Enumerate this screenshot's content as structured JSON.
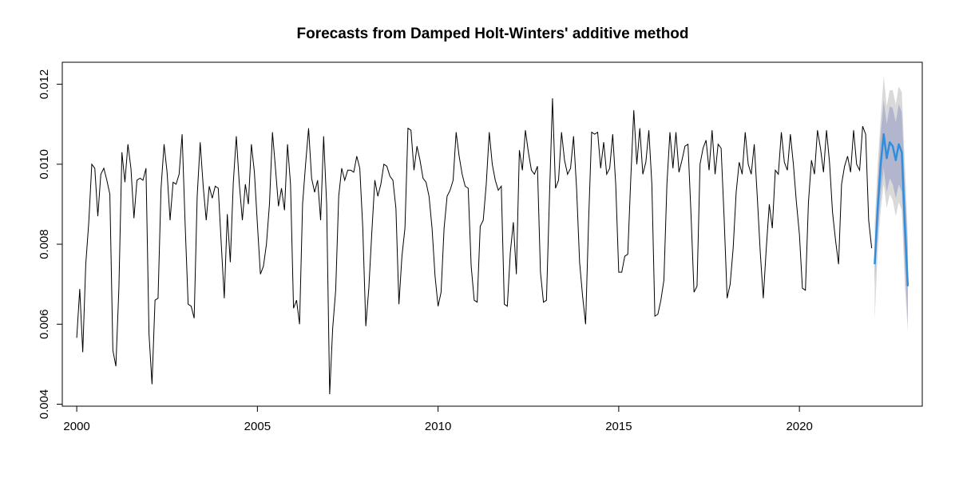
{
  "chart_data": {
    "type": "line",
    "title": "Forecasts from Damped Holt-Winters' additive method",
    "xlabel": "",
    "ylabel": "",
    "xlim": [
      1999.6,
      2023.4
    ],
    "ylim": [
      0.00395,
      0.01255
    ],
    "x_ticks": [
      2000,
      2005,
      2010,
      2015,
      2020
    ],
    "x_tick_labels": [
      "2000",
      "2005",
      "2010",
      "2015",
      "2020"
    ],
    "y_ticks": [
      0.004,
      0.006,
      0.008,
      0.01,
      0.012
    ],
    "y_tick_labels": [
      "0.004",
      "0.006",
      "0.008",
      "0.010",
      "0.012"
    ],
    "grid": false,
    "legend": "none",
    "series": [
      {
        "role": "observed",
        "start": 2000.0,
        "frequency": 12,
        "color": "#000000",
        "values": [
          0.00566,
          0.00688,
          0.0053,
          0.0075,
          0.00855,
          0.01,
          0.0099,
          0.0087,
          0.00975,
          0.0099,
          0.0096,
          0.00925,
          0.00535,
          0.00495,
          0.0069,
          0.0103,
          0.00955,
          0.0105,
          0.0099,
          0.00865,
          0.0096,
          0.00965,
          0.0096,
          0.0099,
          0.00575,
          0.0045,
          0.0066,
          0.00665,
          0.0094,
          0.0105,
          0.0098,
          0.0086,
          0.00955,
          0.0095,
          0.00975,
          0.01075,
          0.0085,
          0.0065,
          0.00645,
          0.00615,
          0.0092,
          0.01055,
          0.00945,
          0.0086,
          0.00945,
          0.00915,
          0.00945,
          0.0094,
          0.008,
          0.00665,
          0.00875,
          0.00755,
          0.00955,
          0.0107,
          0.0095,
          0.0086,
          0.0095,
          0.009,
          0.0105,
          0.0098,
          0.0085,
          0.00725,
          0.00745,
          0.008,
          0.009,
          0.0108,
          0.0099,
          0.00895,
          0.0094,
          0.00885,
          0.0105,
          0.0095,
          0.0064,
          0.0066,
          0.006,
          0.009,
          0.01,
          0.0109,
          0.00965,
          0.0093,
          0.0096,
          0.0086,
          0.0107,
          0.009,
          0.00425,
          0.0059,
          0.00685,
          0.0092,
          0.0099,
          0.0096,
          0.00985,
          0.00985,
          0.0098,
          0.0102,
          0.0099,
          0.0084,
          0.00595,
          0.0069,
          0.0083,
          0.0096,
          0.0092,
          0.0095,
          0.01,
          0.00995,
          0.0097,
          0.0096,
          0.0089,
          0.0065,
          0.0077,
          0.0084,
          0.0109,
          0.01085,
          0.00985,
          0.01045,
          0.0101,
          0.00965,
          0.00955,
          0.0092,
          0.0084,
          0.0072,
          0.00645,
          0.0068,
          0.0084,
          0.0092,
          0.00935,
          0.0096,
          0.0108,
          0.0102,
          0.00975,
          0.00945,
          0.0094,
          0.00745,
          0.0066,
          0.00655,
          0.00845,
          0.0086,
          0.0095,
          0.0108,
          0.01,
          0.0096,
          0.00935,
          0.00945,
          0.0065,
          0.00645,
          0.0078,
          0.00855,
          0.00725,
          0.01035,
          0.00985,
          0.01085,
          0.0103,
          0.00985,
          0.00975,
          0.00995,
          0.0073,
          0.00655,
          0.0066,
          0.0092,
          0.01165,
          0.0094,
          0.0096,
          0.0108,
          0.0101,
          0.00975,
          0.0099,
          0.0107,
          0.0094,
          0.00755,
          0.0067,
          0.006,
          0.0086,
          0.0108,
          0.01075,
          0.0108,
          0.0099,
          0.01055,
          0.00975,
          0.0099,
          0.01075,
          0.0095,
          0.0073,
          0.0073,
          0.0077,
          0.00775,
          0.00965,
          0.01135,
          0.01,
          0.0109,
          0.00975,
          0.01005,
          0.01085,
          0.0095,
          0.0062,
          0.00625,
          0.0066,
          0.0071,
          0.0095,
          0.0108,
          0.0099,
          0.0108,
          0.0098,
          0.0101,
          0.01045,
          0.0105,
          0.00875,
          0.0068,
          0.00695,
          0.01,
          0.0104,
          0.0106,
          0.00985,
          0.01085,
          0.00975,
          0.0105,
          0.0104,
          0.00865,
          0.00665,
          0.007,
          0.0079,
          0.0093,
          0.01005,
          0.00975,
          0.0108,
          0.01,
          0.00975,
          0.0105,
          0.0092,
          0.0078,
          0.00665,
          0.0079,
          0.009,
          0.0084,
          0.00985,
          0.00975,
          0.0108,
          0.01005,
          0.00985,
          0.01075,
          0.01,
          0.00905,
          0.00825,
          0.0069,
          0.00685,
          0.00905,
          0.0101,
          0.00975,
          0.01085,
          0.0104,
          0.0098,
          0.01085,
          0.01005,
          0.0088,
          0.0081,
          0.0075,
          0.0095,
          0.00995,
          0.0102,
          0.0098,
          0.01085,
          0.01,
          0.00985,
          0.01095,
          0.01075,
          0.0086,
          0.0079
        ]
      },
      {
        "role": "forecast",
        "start": 2022.0833,
        "frequency": 12,
        "color": "#2f8fdc",
        "values": [
          0.0075,
          0.0089,
          0.01,
          0.01075,
          0.01015,
          0.01055,
          0.01045,
          0.0101,
          0.0105,
          0.0103,
          0.0085,
          0.00695
        ],
        "pi80_lower": [
          0.007,
          0.00825,
          0.00925,
          0.0099,
          0.0093,
          0.00965,
          0.0095,
          0.00915,
          0.0095,
          0.0093,
          0.0075,
          0.006
        ],
        "pi80_upper": [
          0.008,
          0.00955,
          0.01075,
          0.0116,
          0.011,
          0.01145,
          0.0114,
          0.01105,
          0.0115,
          0.0113,
          0.0095,
          0.0079
        ],
        "pi95_lower": [
          0.0061,
          0.0078,
          0.00885,
          0.0095,
          0.0089,
          0.00925,
          0.0091,
          0.0087,
          0.00905,
          0.00885,
          0.007,
          0.0058
        ],
        "pi95_upper": [
          0.0085,
          0.01,
          0.01115,
          0.0122,
          0.01145,
          0.01185,
          0.01185,
          0.0115,
          0.01195,
          0.0118,
          0.01005,
          0.0082
        ]
      }
    ],
    "colors": {
      "observed": "#000000",
      "forecast": "#2f8fdc",
      "pi80": "#b1b5ce",
      "pi95": "#d9d9d9"
    }
  }
}
